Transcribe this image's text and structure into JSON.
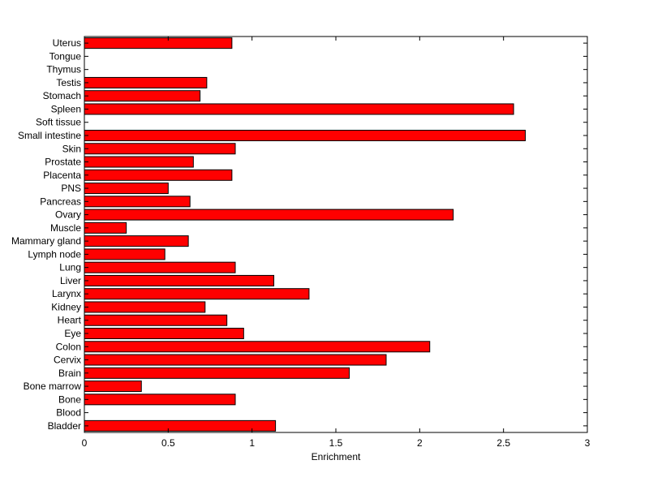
{
  "chart_data": {
    "type": "bar",
    "orientation": "horizontal",
    "title": "",
    "xlabel": "Enrichment",
    "ylabel": "",
    "xlim": [
      0,
      3
    ],
    "xticks": [
      "0",
      "0.5",
      "1",
      "1.5",
      "2",
      "2.5",
      "3"
    ],
    "grid": false,
    "legend": "none",
    "bar_color": "#ff0000",
    "categories": [
      "Bladder",
      "Blood",
      "Bone",
      "Bone marrow",
      "Brain",
      "Cervix",
      "Colon",
      "Eye",
      "Heart",
      "Kidney",
      "Larynx",
      "Liver",
      "Lung",
      "Lymph node",
      "Mammary gland",
      "Muscle",
      "Ovary",
      "Pancreas",
      "PNS",
      "Placenta",
      "Prostate",
      "Skin",
      "Small intestine",
      "Soft tissue",
      "Spleen",
      "Stomach",
      "Testis",
      "Thymus",
      "Tongue",
      "Uterus"
    ],
    "values": [
      1.14,
      0,
      0.9,
      0.34,
      1.58,
      1.8,
      2.06,
      0.95,
      0.85,
      0.72,
      1.34,
      1.13,
      0.9,
      0.48,
      0.62,
      0.25,
      2.2,
      0.63,
      0.5,
      0.88,
      0.65,
      0.9,
      2.63,
      0,
      2.56,
      0.69,
      0.73,
      0,
      0,
      0.88
    ]
  }
}
